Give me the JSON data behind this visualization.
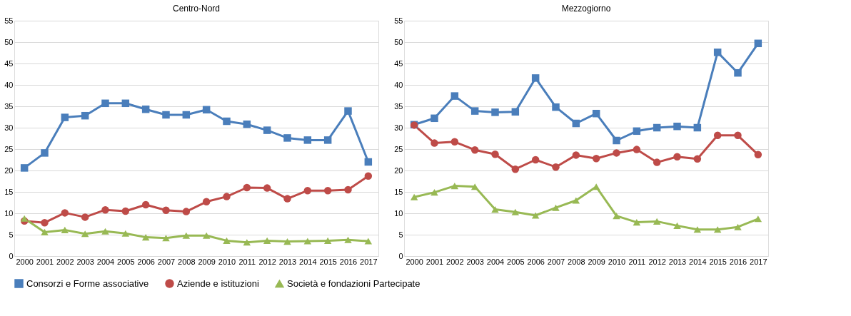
{
  "chart_data": [
    {
      "type": "line",
      "title": "Centro-Nord",
      "categories": [
        "2000",
        "2001",
        "2002",
        "2003",
        "2004",
        "2005",
        "2006",
        "2007",
        "2008",
        "2009",
        "2010",
        "2011",
        "2012",
        "2013",
        "2014",
        "2015",
        "2016",
        "2017"
      ],
      "ylim": [
        0,
        55
      ],
      "yticks": [
        0,
        5,
        10,
        15,
        20,
        25,
        30,
        35,
        40,
        45,
        50,
        55
      ],
      "grid": "y",
      "legend": "bottom",
      "line_style": "solid",
      "series": [
        {
          "name": "Consorzi e Forme associative",
          "color": "#4a7ebb",
          "marker": "square",
          "values": [
            20.6,
            24.1,
            32.4,
            32.8,
            35.7,
            35.7,
            34.3,
            33,
            33,
            34.2,
            31.5,
            30.8,
            29.4,
            27.6,
            27.1,
            27.1,
            33.9,
            22
          ]
        },
        {
          "name": "Aziende e istituzioni",
          "color": "#be4b48",
          "marker": "circle",
          "values": [
            8.2,
            7.8,
            10.1,
            9.1,
            10.8,
            10.5,
            12,
            10.7,
            10.4,
            12.7,
            13.9,
            16,
            15.9,
            13.4,
            15.3,
            15.3,
            15.5,
            18.7
          ]
        },
        {
          "name": "Società e fondazioni Partecipate",
          "color": "#98b954",
          "marker": "triangle",
          "values": [
            8.8,
            5.6,
            6.1,
            5.2,
            5.8,
            5.3,
            4.4,
            4.2,
            4.8,
            4.8,
            3.6,
            3.2,
            3.6,
            3.4,
            3.5,
            3.6,
            3.8,
            3.5
          ]
        }
      ]
    },
    {
      "type": "line",
      "title": "Mezzogiorno",
      "categories": [
        "2000",
        "2001",
        "2002",
        "2003",
        "2004",
        "2005",
        "2006",
        "2007",
        "2008",
        "2009",
        "2010",
        "2011",
        "2012",
        "2013",
        "2014",
        "2015",
        "2016",
        "2017"
      ],
      "ylim": [
        0,
        55
      ],
      "yticks": [
        0,
        5,
        10,
        15,
        20,
        25,
        30,
        35,
        40,
        45,
        50,
        55
      ],
      "grid": "y",
      "legend": "bottom",
      "line_style": "solid",
      "series": [
        {
          "name": "Consorzi e Forme associative",
          "color": "#4a7ebb",
          "marker": "square",
          "values": [
            30.7,
            32.2,
            37.4,
            33.9,
            33.6,
            33.7,
            41.6,
            34.8,
            31,
            33.3,
            27,
            29.2,
            30,
            30.3,
            30,
            47.6,
            42.8,
            49.7
          ]
        },
        {
          "name": "Aziende e istituzioni",
          "color": "#be4b48",
          "marker": "circle",
          "values": [
            30.6,
            26.4,
            26.7,
            24.8,
            23.8,
            20.3,
            22.5,
            20.8,
            23.6,
            22.8,
            24.1,
            24.9,
            21.9,
            23.2,
            22.7,
            28.2,
            28.2,
            23.7
          ]
        },
        {
          "name": "Società e fondazioni Partecipate",
          "color": "#98b954",
          "marker": "triangle",
          "values": [
            13.8,
            14.9,
            16.4,
            16.2,
            10.9,
            10.3,
            9.5,
            11.3,
            13,
            16.2,
            9.4,
            7.9,
            8.1,
            7.1,
            6.2,
            6.2,
            6.8,
            8.7
          ]
        }
      ]
    }
  ]
}
